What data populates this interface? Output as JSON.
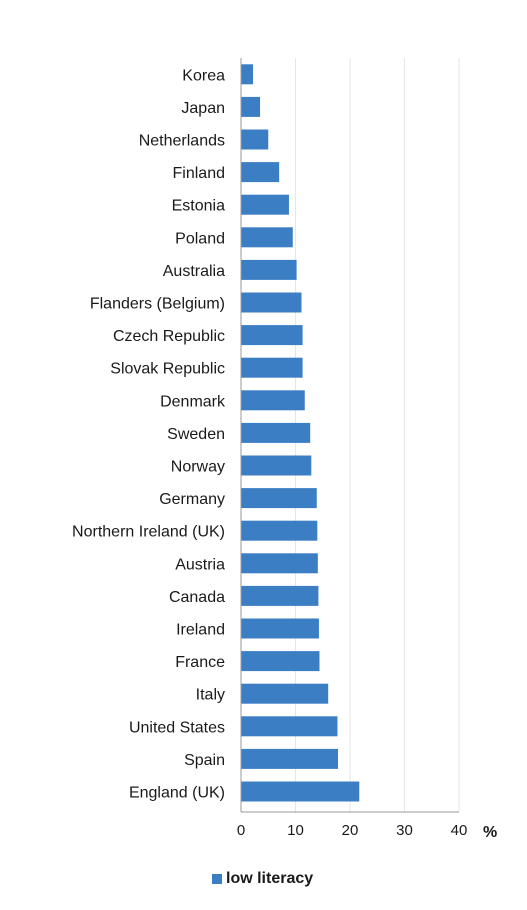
{
  "chart_data": {
    "type": "bar",
    "orientation": "horizontal",
    "categories": [
      "Korea",
      "Japan",
      "Netherlands",
      "Finland",
      "Estonia",
      "Poland",
      "Australia",
      "Flanders (Belgium)",
      "Czech Republic",
      "Slovak Republic",
      "Denmark",
      "Sweden",
      "Norway",
      "Germany",
      "Northern Ireland (UK)",
      "Austria",
      "Canada",
      "Ireland",
      "France",
      "Italy",
      "United States",
      "Spain",
      "England (UK)"
    ],
    "series": [
      {
        "name": "low literacy",
        "values": [
          2.2,
          3.5,
          5.0,
          7.0,
          8.8,
          9.5,
          10.2,
          11.1,
          11.3,
          11.3,
          11.7,
          12.7,
          12.9,
          13.9,
          14.0,
          14.1,
          14.2,
          14.3,
          14.4,
          16.0,
          17.7,
          17.8,
          21.7
        ],
        "color": "#3c7ec4"
      }
    ],
    "xticks": [
      0,
      10,
      20,
      30,
      40
    ],
    "xlim": [
      0,
      40
    ],
    "unit_label": "%",
    "grid": true,
    "legend_position": "bottom-center"
  }
}
